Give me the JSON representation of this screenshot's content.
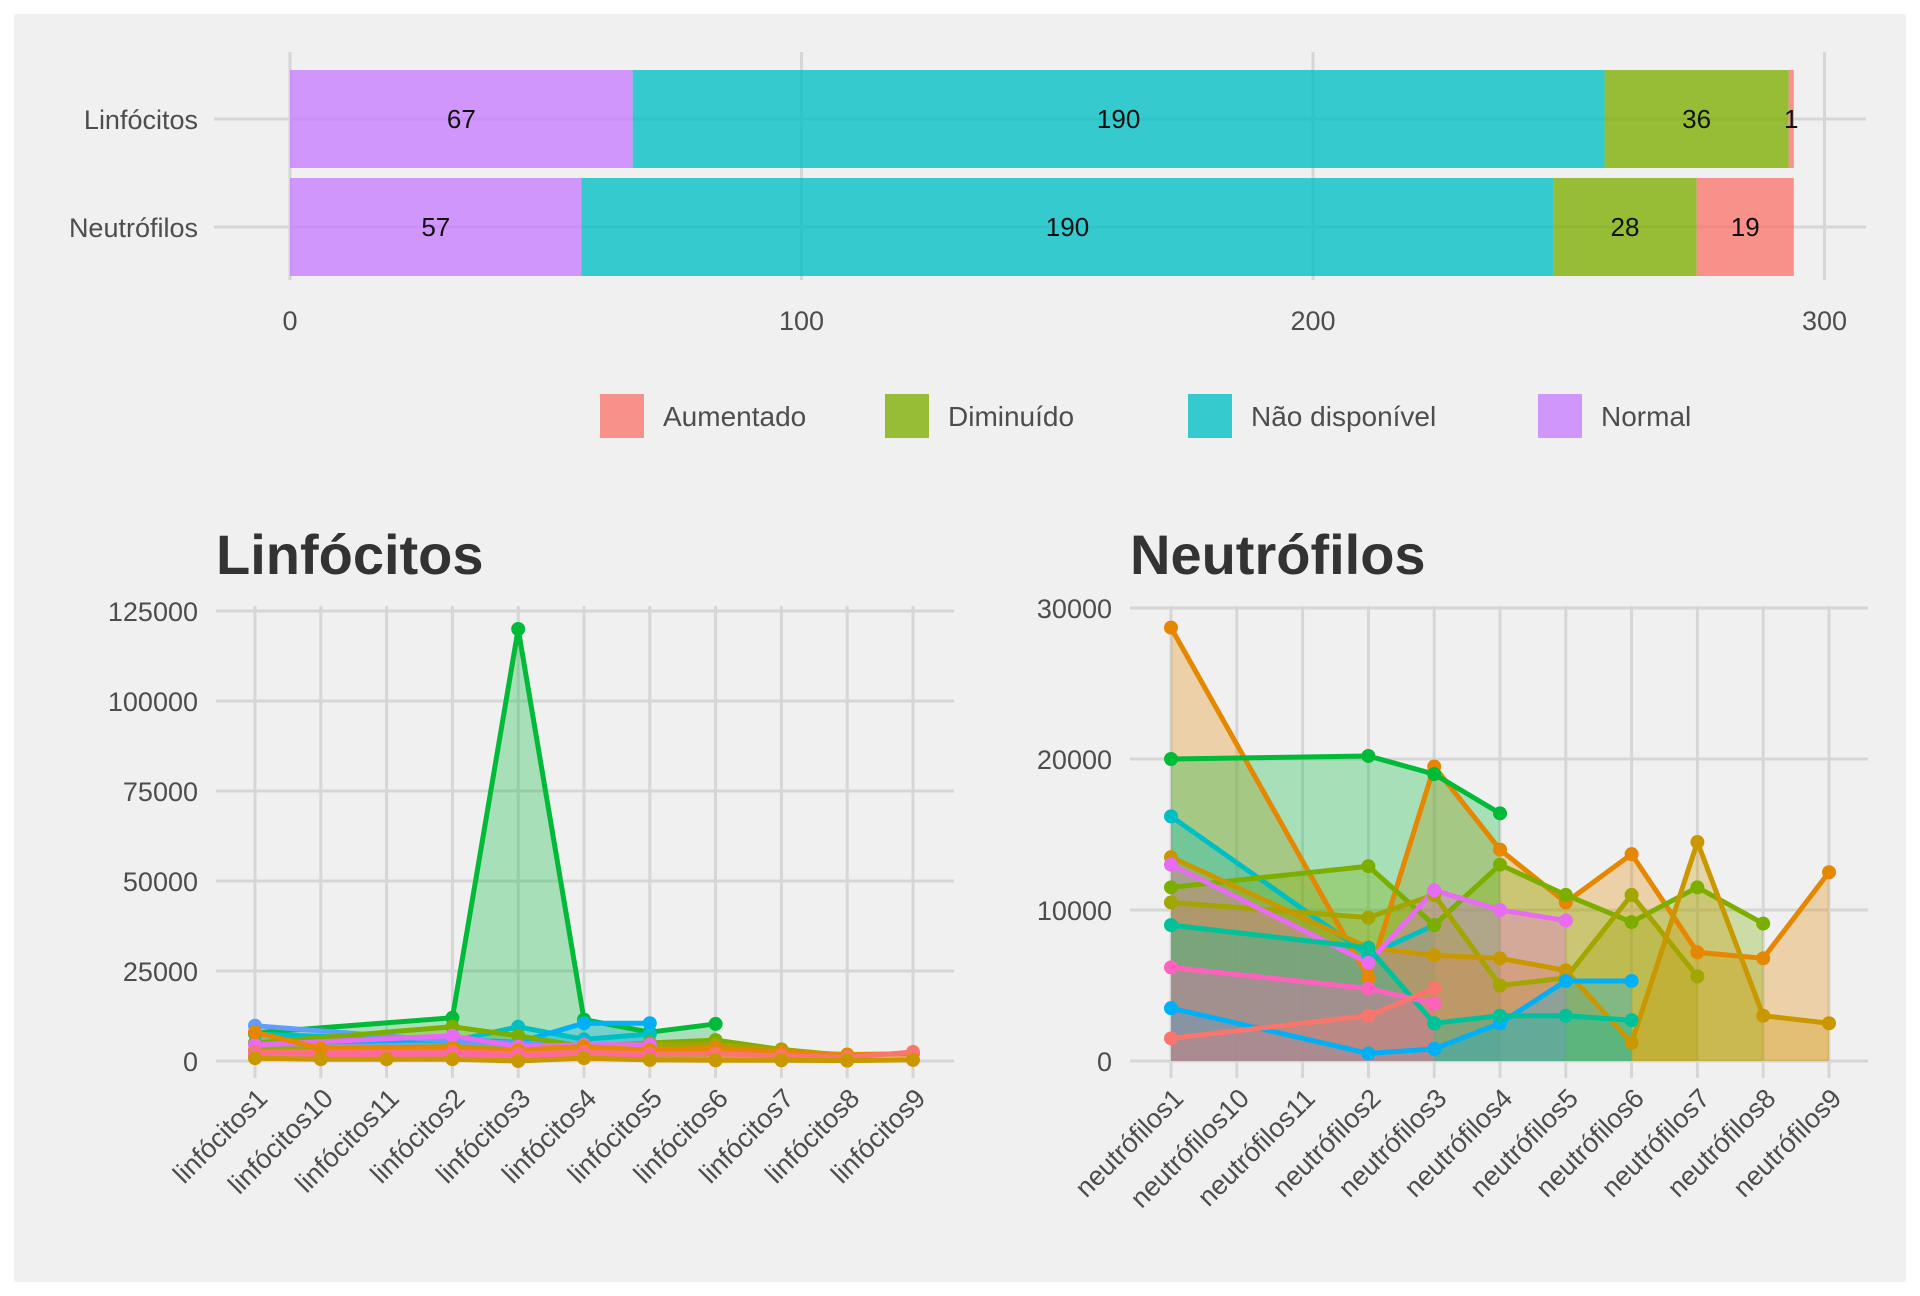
{
  "chart_data": [
    {
      "type": "bar",
      "orientation": "horizontal",
      "stacked": true,
      "categories": [
        "Linfócitos",
        "Neutrófilos"
      ],
      "series": [
        {
          "name": "Normal",
          "values": [
            67,
            57
          ],
          "labels": [
            "67",
            "57"
          ],
          "color": "#C77CFF"
        },
        {
          "name": "Não disponível",
          "values": [
            190,
            190
          ],
          "labels": [
            "190",
            "190"
          ],
          "color": "#00BFC4"
        },
        {
          "name": "Diminuído",
          "values": [
            36,
            28
          ],
          "labels": [
            "36",
            "28"
          ],
          "color": "#7CAE00"
        },
        {
          "name": "Aumentado",
          "values": [
            1,
            19
          ],
          "labels": [
            "1",
            "19"
          ],
          "color": "#F8766D"
        }
      ],
      "legend": {
        "position": "bottom",
        "entries": [
          {
            "label": "Aumentado",
            "color": "#F8766D"
          },
          {
            "label": "Diminuído",
            "color": "#7CAE00"
          },
          {
            "label": "Não disponível",
            "color": "#00BFC4"
          },
          {
            "label": "Normal",
            "color": "#C77CFF"
          }
        ]
      },
      "xlim": [
        0,
        300
      ],
      "xticks": [
        0,
        100,
        200,
        300
      ],
      "grid": true
    },
    {
      "type": "area",
      "title": "Linfócitos",
      "categories": [
        "linfócitos1",
        "linfócitos10",
        "linfócitos11",
        "linfócitos2",
        "linfócitos3",
        "linfócitos4",
        "linfócitos5",
        "linfócitos6",
        "linfócitos7",
        "linfócitos8",
        "linfócitos9"
      ],
      "ylim": [
        0,
        125000
      ],
      "yticks": [
        0,
        25000,
        50000,
        75000,
        100000,
        125000
      ],
      "grid": true,
      "series": [
        {
          "color": "#00BA38",
          "x": [
            0,
            3,
            4,
            5,
            6,
            7
          ],
          "values": [
            7800,
            12000,
            120000,
            11500,
            8000,
            10300
          ]
        },
        {
          "color": "#00BFC4",
          "x": [
            0,
            3,
            4,
            5,
            6
          ],
          "values": [
            7500,
            5500,
            9500,
            6000,
            7500
          ]
        },
        {
          "color": "#00B0F6",
          "x": [
            0,
            3,
            4,
            5,
            6
          ],
          "values": [
            5000,
            6000,
            5200,
            10500,
            10500
          ]
        },
        {
          "color": "#619CFF",
          "x": [
            0,
            3,
            4,
            5
          ],
          "values": [
            9800,
            5500,
            5000,
            4000
          ]
        },
        {
          "color": "#7CAE00",
          "x": [
            0,
            3,
            4,
            5,
            6,
            7,
            8,
            9
          ],
          "values": [
            5000,
            9500,
            7000,
            4000,
            5000,
            5800,
            3200,
            1500
          ]
        },
        {
          "color": "#A3A500",
          "x": [
            0,
            3,
            4,
            5,
            6,
            7,
            8,
            9
          ],
          "values": [
            3000,
            4000,
            3000,
            3500,
            4500,
            4500,
            3200,
            1200
          ]
        },
        {
          "color": "#E76BF3",
          "x": [
            0,
            3,
            4,
            5,
            6
          ],
          "values": [
            4500,
            7000,
            4000,
            4500,
            4500
          ]
        },
        {
          "color": "#E58700",
          "x": [
            0,
            1,
            3,
            4,
            5,
            6,
            7,
            8,
            9,
            10
          ],
          "values": [
            8000,
            3500,
            3500,
            3000,
            4000,
            3000,
            3500,
            2500,
            1800,
            2000
          ]
        },
        {
          "color": "#F8766D",
          "x": [
            0,
            3,
            4,
            5,
            6,
            7,
            8,
            9,
            10
          ],
          "values": [
            2500,
            2500,
            2000,
            2500,
            2000,
            2000,
            1500,
            1000,
            2500
          ]
        },
        {
          "color": "#FF67A4",
          "x": [
            0,
            3,
            4,
            5,
            6
          ],
          "values": [
            1500,
            2000,
            1500,
            1500,
            1500
          ]
        },
        {
          "color": "#C99800",
          "x": [
            0,
            1,
            2,
            3,
            4,
            5,
            6,
            7,
            8,
            9,
            10
          ],
          "values": [
            800,
            500,
            500,
            500,
            0,
            800,
            300,
            200,
            200,
            100,
            300
          ]
        }
      ]
    },
    {
      "type": "area",
      "title": "Neutrófilos",
      "categories": [
        "neutrófilos1",
        "neutrófilos10",
        "neutrófilos11",
        "neutrófilos2",
        "neutrófilos3",
        "neutrófilos4",
        "neutrófilos5",
        "neutrófilos6",
        "neutrófilos7",
        "neutrófilos8",
        "neutrófilos9"
      ],
      "ylim": [
        0,
        30000
      ],
      "yticks": [
        0,
        10000,
        20000,
        30000
      ],
      "grid": true,
      "series": [
        {
          "color": "#E58700",
          "x": [
            0,
            3,
            4,
            5,
            6,
            7,
            8,
            9,
            10
          ],
          "values": [
            28700,
            5500,
            19500,
            14000,
            10500,
            13700,
            7200,
            6800,
            12500
          ]
        },
        {
          "color": "#00BA38",
          "x": [
            0,
            3,
            4,
            5
          ],
          "values": [
            20000,
            20200,
            19000,
            16400
          ]
        },
        {
          "color": "#00BFC4",
          "x": [
            0,
            3,
            4
          ],
          "values": [
            16200,
            7000,
            9000
          ]
        },
        {
          "color": "#7CAE00",
          "x": [
            0,
            3,
            4,
            5,
            6,
            7,
            8,
            9
          ],
          "values": [
            11500,
            12900,
            9000,
            13000,
            11000,
            9200,
            11500,
            9100
          ]
        },
        {
          "color": "#A3A500",
          "x": [
            0,
            3,
            4,
            5,
            6,
            7,
            8
          ],
          "values": [
            10500,
            9500,
            11000,
            5000,
            5500,
            11000,
            5600
          ]
        },
        {
          "color": "#C99800",
          "x": [
            0,
            3,
            4,
            5,
            6,
            7,
            8,
            9,
            10
          ],
          "values": [
            13500,
            7500,
            7000,
            6800,
            6000,
            1200,
            14500,
            3000,
            2500
          ]
        },
        {
          "color": "#E76BF3",
          "x": [
            0,
            3,
            4,
            5,
            6
          ],
          "values": [
            13000,
            6500,
            11300,
            10000,
            9300
          ]
        },
        {
          "color": "#00B0F6",
          "x": [
            0,
            3,
            4,
            5,
            6,
            7
          ],
          "values": [
            3500,
            500,
            800,
            2500,
            5300,
            5300
          ]
        },
        {
          "color": "#00C19A",
          "x": [
            0,
            3,
            4,
            5,
            6,
            7
          ],
          "values": [
            9000,
            7500,
            2500,
            3000,
            3000,
            2700
          ]
        },
        {
          "color": "#FF62BC",
          "x": [
            0,
            3,
            4
          ],
          "values": [
            6200,
            4800,
            3800
          ]
        },
        {
          "color": "#F8766D",
          "x": [
            0,
            3,
            4
          ],
          "values": [
            1500,
            3000,
            4800
          ]
        }
      ]
    }
  ]
}
